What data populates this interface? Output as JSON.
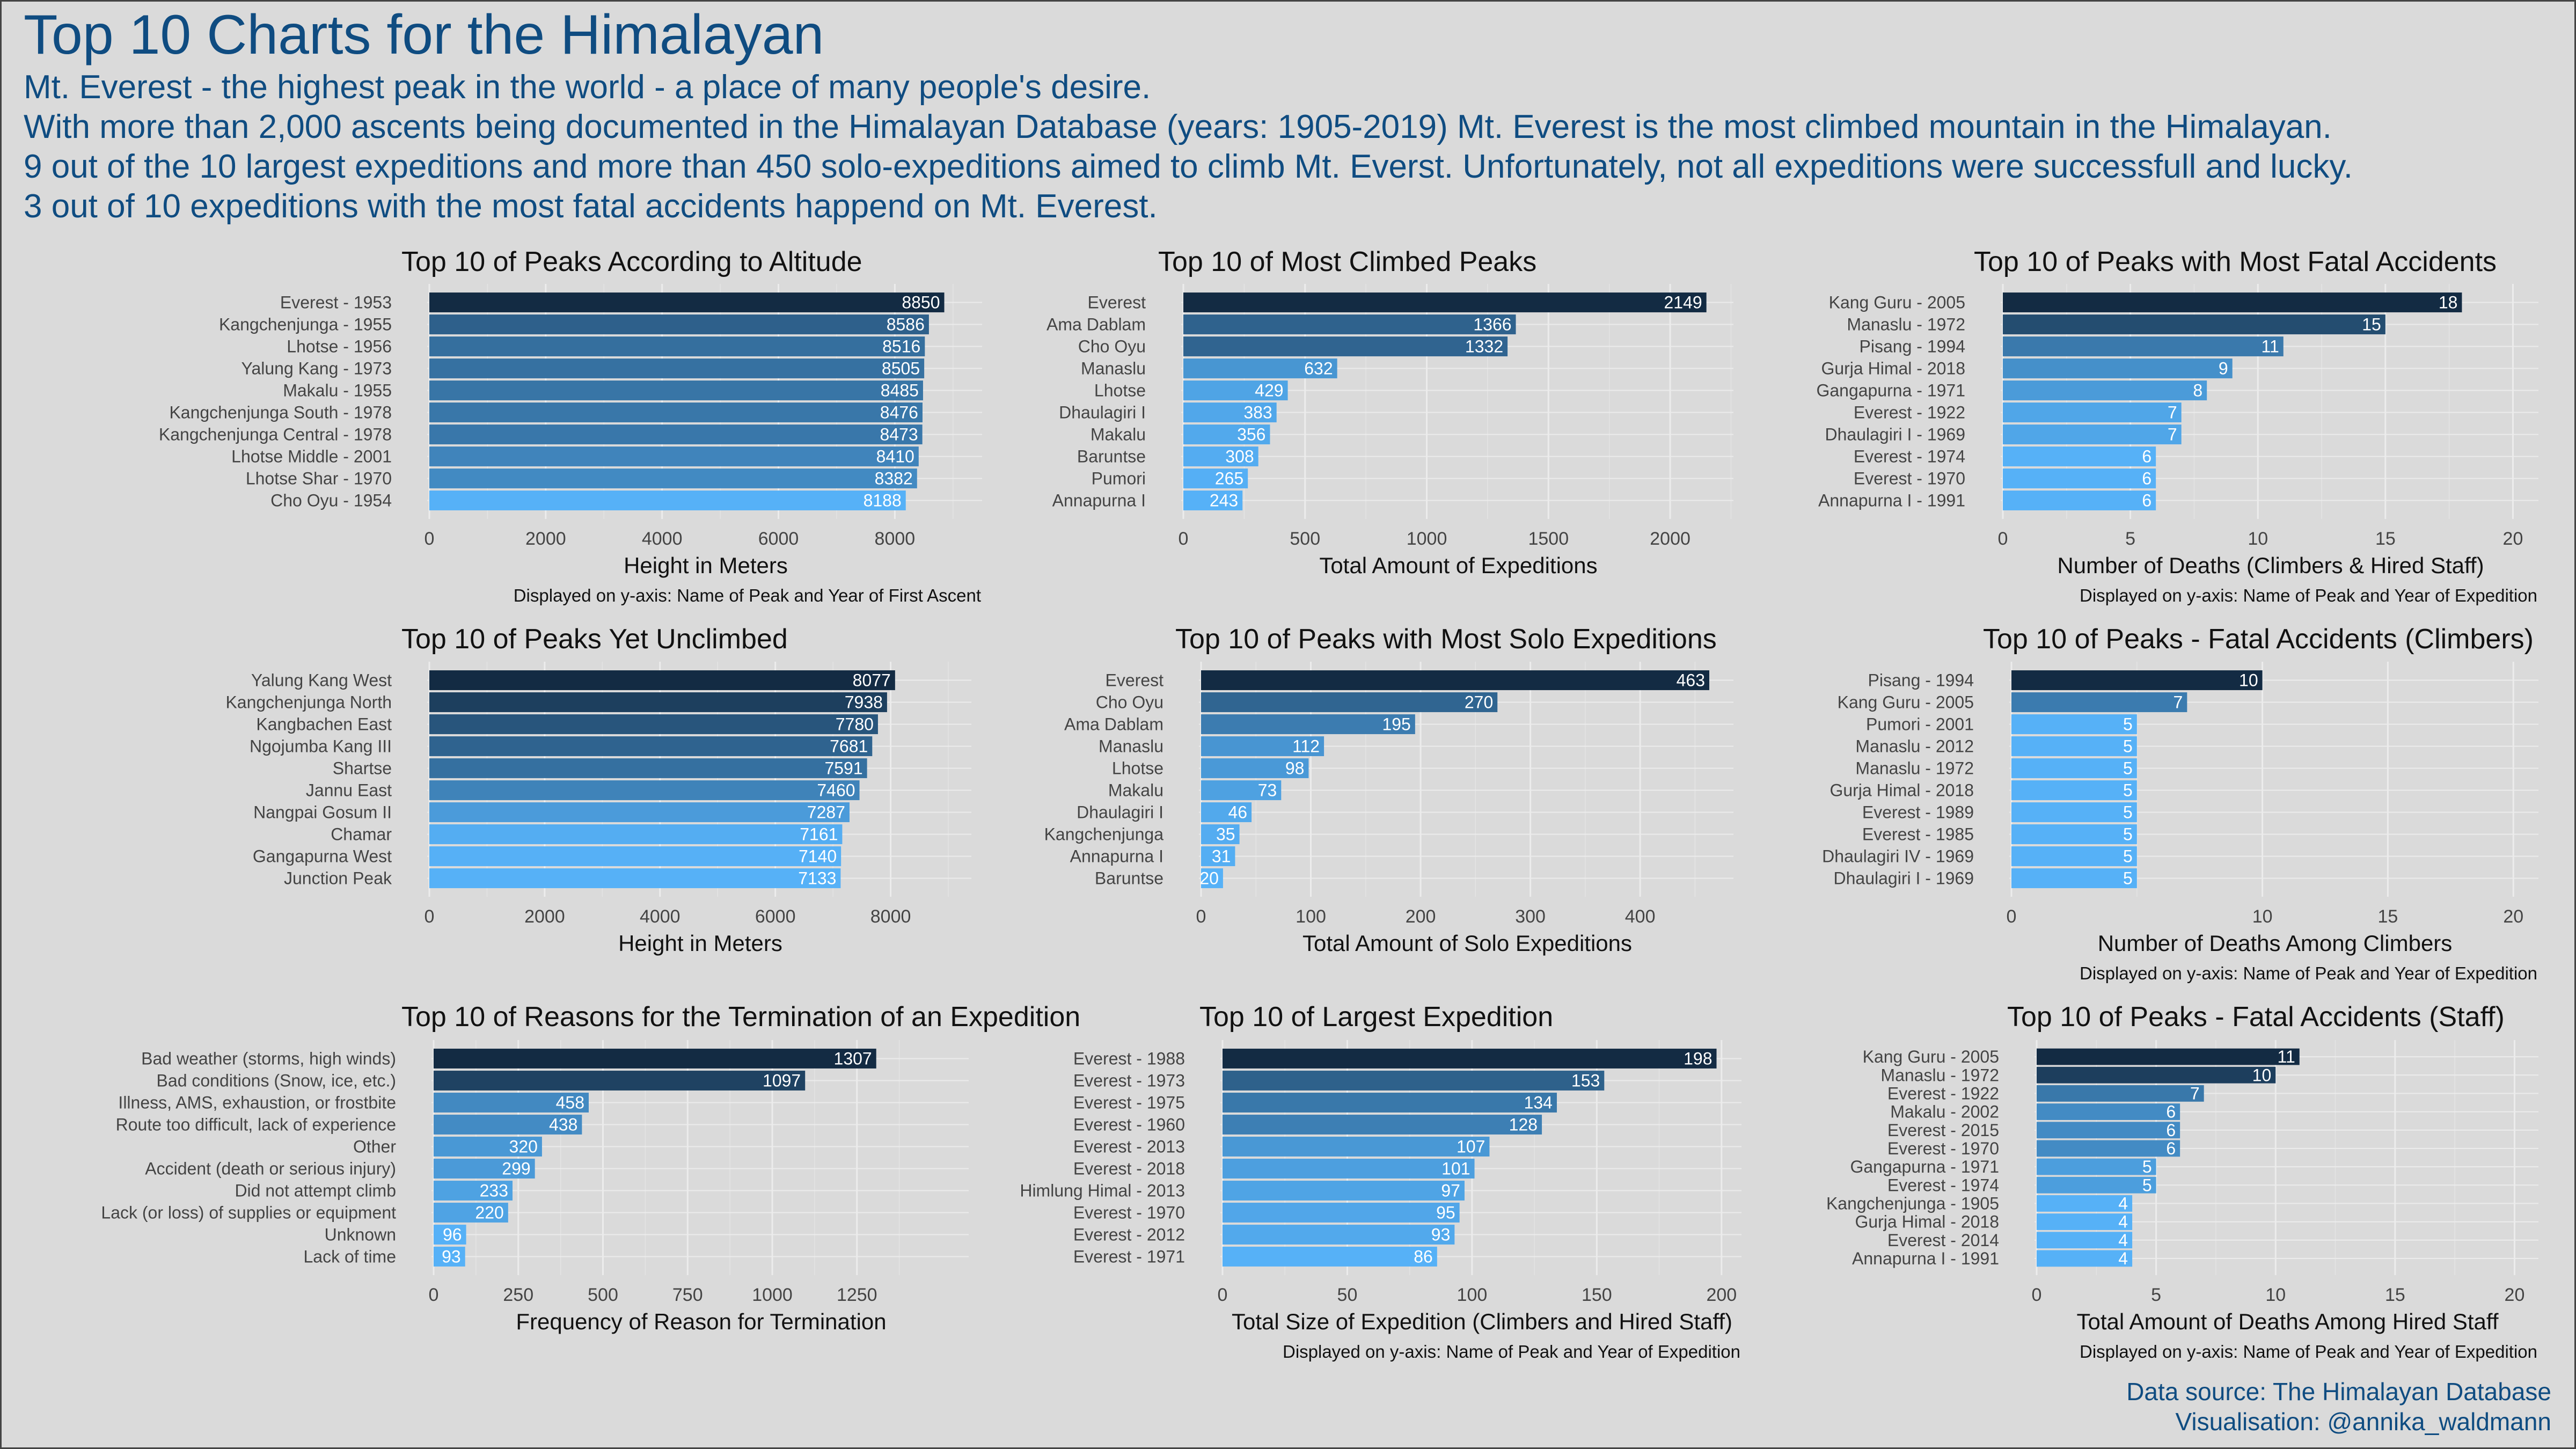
{
  "title": "Top 10 Charts for the Himalayan",
  "subtitle_lines": [
    "Mt. Everest - the highest peak in the world - a place of many people's desire.",
    "With more than 2,000 ascents being documented in the Himalayan Database (years: 1905-2019) Mt. Everest is the most climbed mountain in the Himalayan.",
    "9 out of the 10 largest expeditions and more than 450 solo-expeditions aimed to climb Mt. Everst.  Unfortunately, not all expeditions were successfull and lucky.",
    "3 out of 10 expeditions with the most fatal accidents happend on Mt. Everest."
  ],
  "source": {
    "line1": "Data source: The Himalayan Database",
    "line2": "Visualisation: @annika_waldmann"
  },
  "colors": {
    "background": "#dadada",
    "title": "#0f4c81",
    "bar_dark": "#132b43",
    "bar_light": "#56b1f7"
  },
  "chart_data": [
    {
      "type": "bar",
      "orientation": "horizontal",
      "title": "Top 10 of Peaks According to Altitude",
      "categories": [
        "Everest - 1953",
        "Kangchenjunga - 1955",
        "Lhotse - 1956",
        "Yalung Kang - 1973",
        "Makalu - 1955",
        "Kangchenjunga South - 1978",
        "Kangchenjunga Central - 1978",
        "Lhotse Middle - 2001",
        "Lhotse Shar - 1970",
        "Cho Oyu - 1954"
      ],
      "values": [
        8850,
        8586,
        8516,
        8505,
        8485,
        8476,
        8473,
        8410,
        8382,
        8188
      ],
      "xlabel": "Height in Meters",
      "note": "Displayed on y-axis: Name of Peak and Year of First Ascent",
      "xlim": [
        0,
        9500
      ],
      "xticks": [
        0,
        2000,
        4000,
        6000,
        8000
      ],
      "grid": true
    },
    {
      "type": "bar",
      "orientation": "horizontal",
      "title": "Top 10 of Most Climbed Peaks",
      "categories": [
        "Everest",
        "Ama Dablam",
        "Cho Oyu",
        "Manaslu",
        "Lhotse",
        "Dhaulagiri I",
        "Makalu",
        "Baruntse",
        "Pumori",
        "Annapurna I"
      ],
      "values": [
        2149,
        1366,
        1332,
        632,
        429,
        383,
        356,
        308,
        265,
        243
      ],
      "xlabel": "Total Amount of Expeditions",
      "note": "",
      "xlim": [
        0,
        2260
      ],
      "xticks": [
        0,
        500,
        1000,
        1500,
        2000
      ],
      "grid": true
    },
    {
      "type": "bar",
      "orientation": "horizontal",
      "title": "Top 10 of Peaks with Most Fatal Accidents",
      "categories": [
        "Kang Guru - 2005",
        "Manaslu - 1972",
        "Pisang - 1994",
        "Gurja Himal - 2018",
        "Gangapurna - 1971",
        "Everest - 1922",
        "Dhaulagiri I - 1969",
        "Everest - 1974",
        "Everest - 1970",
        "Annapurna I - 1991"
      ],
      "values": [
        18,
        15,
        11,
        9,
        8,
        7,
        7,
        6,
        6,
        6
      ],
      "xlabel": "Number of Deaths (Climbers & Hired Staff)",
      "note": "Displayed on y-axis: Name of Peak and Year of Expedition",
      "xlim": [
        0,
        21
      ],
      "xticks": [
        0,
        5,
        10,
        15,
        20
      ],
      "grid": true
    },
    {
      "type": "bar",
      "orientation": "horizontal",
      "title": "Top 10 of Peaks Yet Unclimbed",
      "categories": [
        "Yalung Kang West",
        "Kangchenjunga North",
        "Kangbachen East",
        "Ngojumba Kang III",
        "Shartse",
        "Jannu East",
        "Nangpai Gosum II",
        "Chamar",
        "Gangapurna West",
        "Junction Peak"
      ],
      "values": [
        8077,
        7938,
        7780,
        7681,
        7591,
        7460,
        7287,
        7161,
        7140,
        7133
      ],
      "xlabel": "Height in Meters",
      "note": "",
      "xlim": [
        0,
        9400
      ],
      "xticks": [
        0,
        2000,
        4000,
        6000,
        8000
      ],
      "grid": true
    },
    {
      "type": "bar",
      "orientation": "horizontal",
      "title": "Top 10 of Peaks with Most Solo Expeditions",
      "categories": [
        "Everest",
        "Cho Oyu",
        "Ama Dablam",
        "Manaslu",
        "Lhotse",
        "Makalu",
        "Dhaulagiri I",
        "Kangchenjunga",
        "Annapurna I",
        "Baruntse"
      ],
      "values": [
        463,
        270,
        195,
        112,
        98,
        73,
        46,
        35,
        31,
        20
      ],
      "xlabel": "Total Amount of Solo Expeditions",
      "note": "",
      "xlim": [
        0,
        485
      ],
      "xticks": [
        0,
        100,
        200,
        300,
        400
      ],
      "grid": true
    },
    {
      "type": "bar",
      "orientation": "horizontal",
      "title": "Top 10 of Peaks - Fatal Accidents (Climbers)",
      "categories": [
        "Pisang - 1994",
        "Kang Guru - 2005",
        "Pumori - 2001",
        "Manaslu - 2012",
        "Manaslu - 1972",
        "Gurja Himal - 2018",
        "Everest - 1989",
        "Everest - 1985",
        "Dhaulagiri IV - 1969",
        "Dhaulagiri I - 1969"
      ],
      "values": [
        10,
        7,
        5,
        5,
        5,
        5,
        5,
        5,
        5,
        5
      ],
      "xlabel": "Number of Deaths Among Climbers",
      "note": "Displayed on y-axis: Name of Peak and Year of Expedition",
      "xlim": [
        0,
        21
      ],
      "xticks": [
        0,
        10,
        15,
        20
      ],
      "grid": true
    },
    {
      "type": "bar",
      "orientation": "horizontal",
      "title": "Top 10 of Reasons for the Termination of an Expedition",
      "categories": [
        "Bad weather (storms, high winds)",
        "Bad conditions (Snow, ice, etc.)",
        "Illness, AMS, exhaustion, or frostbite",
        "Route too difficult, lack of experience",
        "Other",
        "Accident (death or serious injury)",
        "Did not attempt climb",
        "Lack (or loss) of supplies or equipment",
        "Unknown",
        "Lack of time"
      ],
      "values": [
        1307,
        1097,
        458,
        438,
        320,
        299,
        233,
        220,
        96,
        93
      ],
      "xlabel": "Frequency of Reason for Termination",
      "note": "",
      "xlim": [
        0,
        1580
      ],
      "xticks": [
        0,
        250,
        500,
        750,
        1000,
        1250
      ],
      "grid": true
    },
    {
      "type": "bar",
      "orientation": "horizontal",
      "title": "Top 10 of Largest Expedition",
      "categories": [
        "Everest - 1988",
        "Everest - 1973",
        "Everest - 1975",
        "Everest - 1960",
        "Everest - 2013",
        "Everest - 2018",
        "Himlung Himal - 2013",
        "Everest - 1970",
        "Everest - 2012",
        "Everest - 1971"
      ],
      "values": [
        198,
        153,
        134,
        128,
        107,
        101,
        97,
        95,
        93,
        86
      ],
      "xlabel": "Total Size of Expedition (Climbers and Hired Staff)",
      "note": "Displayed on y-axis: Name of Peak and Year of Expedition",
      "xlim": [
        0,
        208
      ],
      "xticks": [
        0,
        50,
        100,
        150,
        200
      ],
      "grid": true
    },
    {
      "type": "bar",
      "orientation": "horizontal",
      "title": "Top 10 of Peaks - Fatal Accidents (Staff)",
      "categories": [
        "Kang Guru - 2005",
        "Manaslu - 1972",
        "Everest - 1922",
        "Makalu - 2002",
        "Everest - 2015",
        "Everest - 1970",
        "Gangapurna - 1971",
        "Everest - 1974",
        "Kangchenjunga - 1905",
        "Gurja Himal - 2018",
        "Everest - 2014",
        "Annapurna I - 1991"
      ],
      "values": [
        11,
        10,
        7,
        6,
        6,
        6,
        5,
        5,
        4,
        4,
        4,
        4
      ],
      "xlabel": "Total Amount of Deaths Among Hired Staff",
      "note": "Displayed on y-axis: Name of Peak and Year of Expedition",
      "xlim": [
        0,
        21
      ],
      "xticks": [
        0,
        5,
        10,
        15,
        20
      ],
      "grid": true
    }
  ]
}
